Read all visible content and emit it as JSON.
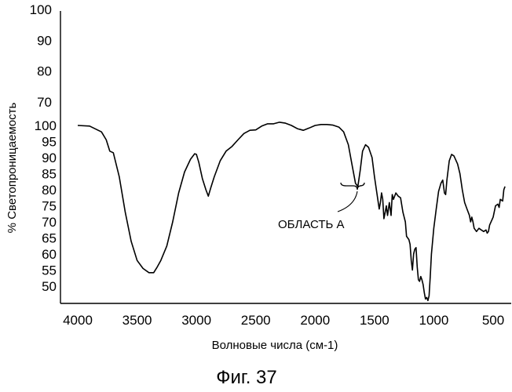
{
  "chart_data": {
    "type": "line",
    "title": "",
    "figure_caption": "Фиг. 37",
    "xlabel": "Волновые числа (см-1)",
    "ylabel": "% Светопроницаемость",
    "x_reversed": true,
    "xlim": [
      4000,
      400
    ],
    "grid": false,
    "x_ticks": [
      "4000",
      "3500",
      "3000",
      "2500",
      "2000",
      "1500",
      "1000",
      "500"
    ],
    "x_tick_values": [
      4000,
      3500,
      3000,
      2500,
      2000,
      1500,
      1000,
      500
    ],
    "y_ticks_upper": [
      "100",
      "90",
      "80",
      "70"
    ],
    "y_ticks_lower": [
      "100",
      "95",
      "90",
      "85",
      "80",
      "75",
      "70",
      "65",
      "60",
      "55",
      "50"
    ],
    "annotation": "ОБЛАСТЬ А",
    "series": [
      {
        "color": "#000000",
        "points": [
          [
            4000,
            100
          ],
          [
            3900,
            99.8
          ],
          [
            3800,
            98
          ],
          [
            3760,
            95.5
          ],
          [
            3730,
            92
          ],
          [
            3700,
            91.5
          ],
          [
            3650,
            84
          ],
          [
            3600,
            73
          ],
          [
            3550,
            64
          ],
          [
            3500,
            58
          ],
          [
            3450,
            55.5
          ],
          [
            3400,
            54.2
          ],
          [
            3360,
            54.2
          ],
          [
            3330,
            56
          ],
          [
            3300,
            58
          ],
          [
            3250,
            62.5
          ],
          [
            3200,
            70
          ],
          [
            3150,
            79
          ],
          [
            3100,
            85.5
          ],
          [
            3050,
            89.5
          ],
          [
            3015,
            91.2
          ],
          [
            3000,
            91
          ],
          [
            2980,
            88.5
          ],
          [
            2950,
            83.5
          ],
          [
            2920,
            80
          ],
          [
            2900,
            78
          ],
          [
            2880,
            80.5
          ],
          [
            2850,
            84
          ],
          [
            2800,
            89
          ],
          [
            2750,
            92
          ],
          [
            2700,
            93.5
          ],
          [
            2650,
            95.5
          ],
          [
            2600,
            97.5
          ],
          [
            2550,
            98.5
          ],
          [
            2500,
            98.6
          ],
          [
            2450,
            99.8
          ],
          [
            2400,
            100.5
          ],
          [
            2350,
            100.5
          ],
          [
            2300,
            101
          ],
          [
            2250,
            100.7
          ],
          [
            2200,
            100
          ],
          [
            2150,
            99
          ],
          [
            2100,
            98.5
          ],
          [
            2050,
            99.2
          ],
          [
            2000,
            100
          ],
          [
            1950,
            100.3
          ],
          [
            1900,
            100.3
          ],
          [
            1850,
            100.1
          ],
          [
            1800,
            99.5
          ],
          [
            1760,
            98
          ],
          [
            1720,
            94
          ],
          [
            1690,
            88
          ],
          [
            1660,
            82
          ],
          [
            1640,
            81
          ],
          [
            1620,
            86
          ],
          [
            1600,
            92
          ],
          [
            1575,
            94
          ],
          [
            1550,
            93.2
          ],
          [
            1520,
            90
          ],
          [
            1500,
            84
          ],
          [
            1480,
            79
          ],
          [
            1460,
            74
          ],
          [
            1450,
            76
          ],
          [
            1440,
            79
          ],
          [
            1430,
            77
          ],
          [
            1420,
            71
          ],
          [
            1410,
            73
          ],
          [
            1400,
            75
          ],
          [
            1390,
            72
          ],
          [
            1375,
            76
          ],
          [
            1360,
            72
          ],
          [
            1350,
            78.5
          ],
          [
            1340,
            77
          ],
          [
            1320,
            79
          ],
          [
            1300,
            78
          ],
          [
            1280,
            77.5
          ],
          [
            1260,
            73
          ],
          [
            1240,
            70
          ],
          [
            1230,
            65.5
          ],
          [
            1210,
            64.5
          ],
          [
            1200,
            63
          ],
          [
            1190,
            58
          ],
          [
            1180,
            55
          ],
          [
            1170,
            60
          ],
          [
            1160,
            61.5
          ],
          [
            1150,
            62
          ],
          [
            1140,
            56
          ],
          [
            1130,
            52
          ],
          [
            1120,
            51.5
          ],
          [
            1110,
            53
          ],
          [
            1100,
            52
          ],
          [
            1090,
            50.5
          ],
          [
            1080,
            48
          ],
          [
            1070,
            46
          ],
          [
            1060,
            46.5
          ],
          [
            1050,
            45.5
          ],
          [
            1040,
            47
          ],
          [
            1030,
            53
          ],
          [
            1020,
            60
          ],
          [
            1000,
            68
          ],
          [
            980,
            74
          ],
          [
            960,
            79.5
          ],
          [
            940,
            82
          ],
          [
            925,
            83
          ],
          [
            910,
            79
          ],
          [
            900,
            78.5
          ],
          [
            890,
            83
          ],
          [
            870,
            89
          ],
          [
            850,
            91
          ],
          [
            830,
            90.5
          ],
          [
            800,
            88
          ],
          [
            780,
            85
          ],
          [
            760,
            80
          ],
          [
            740,
            76
          ],
          [
            720,
            74
          ],
          [
            700,
            72
          ],
          [
            690,
            70
          ],
          [
            680,
            71.5
          ],
          [
            670,
            70
          ],
          [
            660,
            68
          ],
          [
            640,
            67
          ],
          [
            620,
            68
          ],
          [
            600,
            67.5
          ],
          [
            580,
            67
          ],
          [
            560,
            67.5
          ],
          [
            550,
            66.5
          ],
          [
            540,
            67
          ],
          [
            530,
            69
          ],
          [
            500,
            71.5
          ],
          [
            480,
            75
          ],
          [
            460,
            75.5
          ],
          [
            450,
            74.5
          ],
          [
            440,
            77
          ],
          [
            420,
            76.5
          ],
          [
            410,
            80
          ],
          [
            400,
            81
          ]
        ]
      }
    ]
  }
}
